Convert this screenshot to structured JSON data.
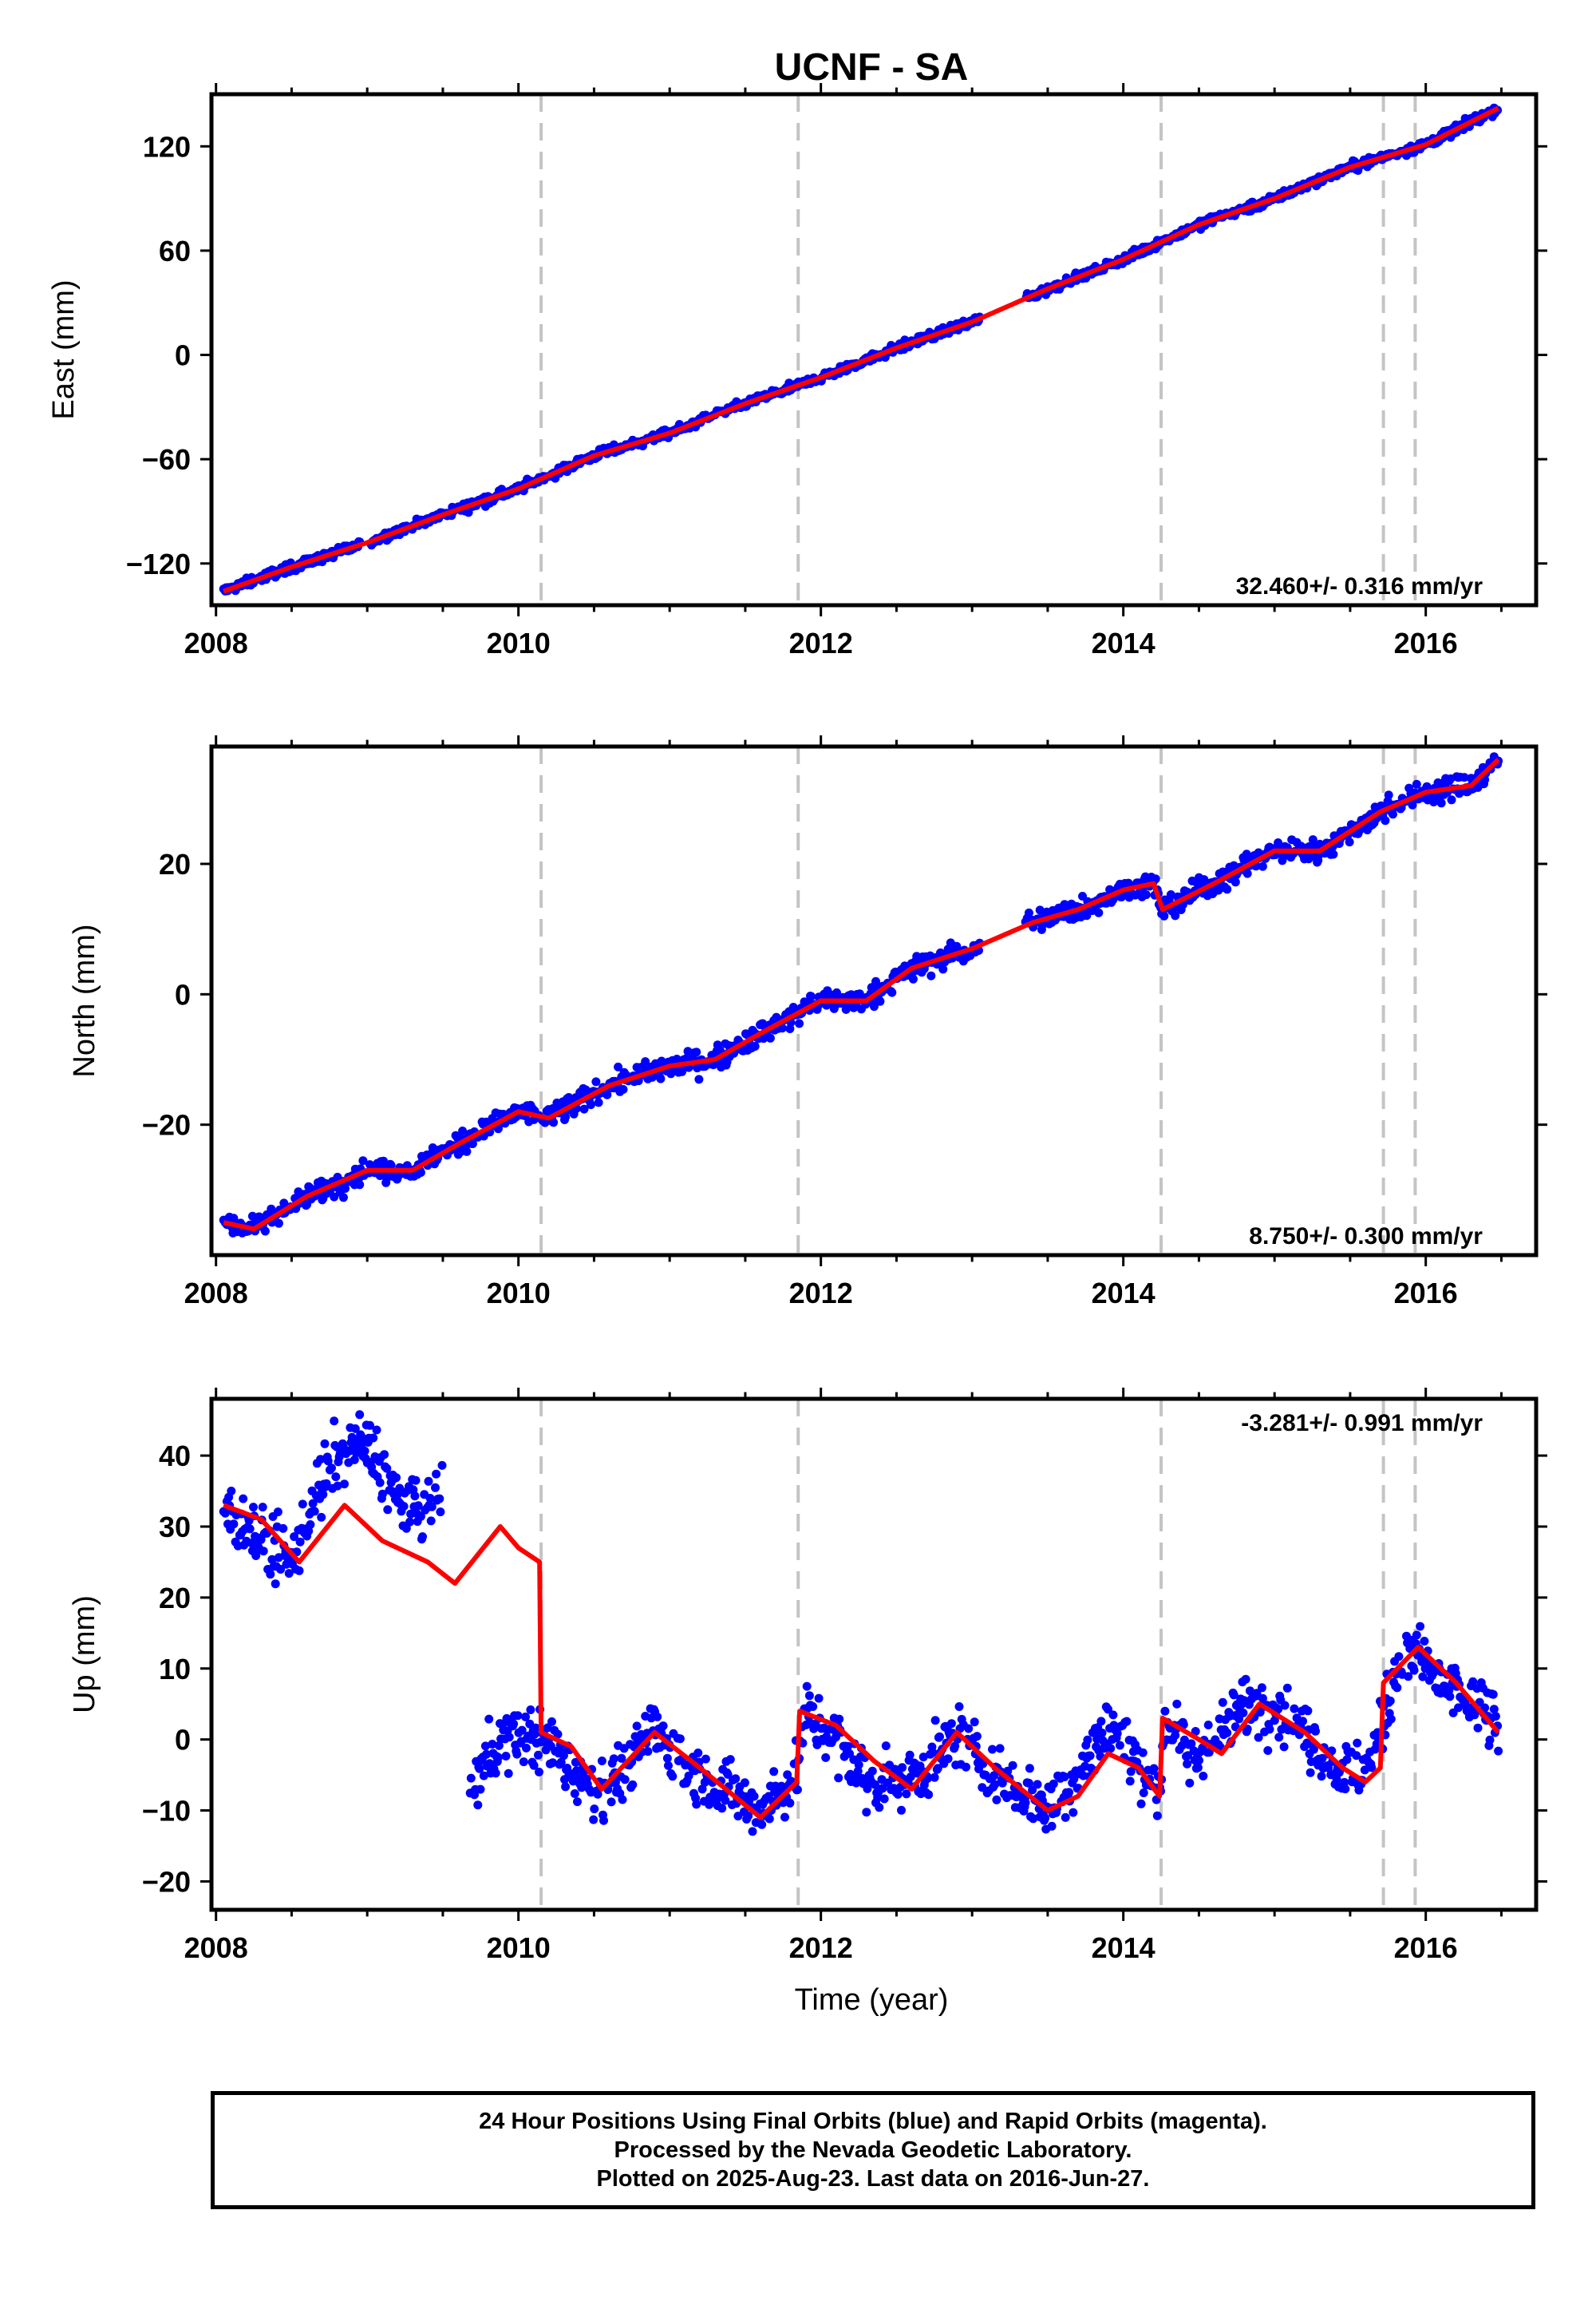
{
  "chart_data": [
    {
      "type": "scatter",
      "title": "UCNF - SA",
      "ylabel": "East (mm)",
      "xlabel": "",
      "xlim": [
        2007.97,
        2016.73
      ],
      "ylim": [
        -144,
        150
      ],
      "xticks": [
        2008,
        2010,
        2012,
        2014,
        2016
      ],
      "yticks": [
        -120,
        -60,
        0,
        60,
        120
      ],
      "ytick_labels": [
        "−120",
        "−60",
        "0",
        "60",
        "120"
      ],
      "rate_label": "32.460+/- 0.316 mm/yr",
      "rate_position": "bottom-right",
      "grid": false,
      "event_lines": [
        2010.15,
        2011.85,
        2014.25,
        2015.72,
        2015.93
      ],
      "series": [
        {
          "kind": "points",
          "color": "#0000ff",
          "gaps": [
            [
              2008.95,
              2009.02
            ],
            [
              2013.05,
              2013.35
            ]
          ],
          "x": [
            2008.05,
            2008.5,
            2009.0,
            2009.5,
            2010.0,
            2010.5,
            2011.0,
            2011.5,
            2012.0,
            2012.5,
            2013.0,
            2013.5,
            2014.0,
            2014.5,
            2015.0,
            2015.5,
            2016.0,
            2016.48
          ],
          "y": [
            -136,
            -122,
            -108,
            -92,
            -77,
            -58,
            -45,
            -28,
            -13,
            4,
            19,
            38,
            55,
            75,
            90,
            108,
            121,
            142
          ]
        },
        {
          "kind": "line",
          "color": "#ff0000",
          "x": [
            2008.05,
            2008.5,
            2009.0,
            2009.5,
            2010.0,
            2010.5,
            2011.0,
            2011.5,
            2012.0,
            2012.5,
            2013.0,
            2013.5,
            2014.0,
            2014.5,
            2015.0,
            2015.5,
            2016.0,
            2016.48
          ],
          "y": [
            -136,
            -122,
            -108,
            -92,
            -77,
            -58,
            -45,
            -28,
            -13,
            4,
            19,
            38,
            55,
            75,
            90,
            108,
            121,
            142
          ]
        }
      ]
    },
    {
      "type": "scatter",
      "title": "",
      "ylabel": "North (mm)",
      "xlabel": "",
      "xlim": [
        2007.97,
        2016.73
      ],
      "ylim": [
        -40,
        38
      ],
      "xticks": [
        2008,
        2010,
        2012,
        2014,
        2016
      ],
      "yticks": [
        -20,
        0,
        20
      ],
      "ytick_labels": [
        "−20",
        "0",
        "20"
      ],
      "rate_label": "8.750+/- 0.300 mm/yr",
      "rate_position": "bottom-right",
      "grid": false,
      "event_lines": [
        2010.15,
        2011.85,
        2014.25,
        2015.72,
        2015.93
      ],
      "series": [
        {
          "kind": "points",
          "color": "#0000ff",
          "gaps": [
            [
              2013.05,
              2013.35
            ]
          ],
          "x": [
            2008.05,
            2008.25,
            2008.6,
            2009.0,
            2009.3,
            2009.6,
            2010.0,
            2010.2,
            2010.6,
            2011.0,
            2011.3,
            2011.6,
            2012.0,
            2012.3,
            2012.6,
            2013.0,
            2013.4,
            2013.7,
            2014.0,
            2014.2,
            2014.26,
            2014.6,
            2015.0,
            2015.3,
            2015.7,
            2016.0,
            2016.3,
            2016.48
          ],
          "y": [
            -35,
            -36,
            -31,
            -27,
            -27,
            -23,
            -18,
            -19,
            -14,
            -11,
            -10,
            -6,
            -1,
            -1,
            4,
            7,
            11,
            13,
            16,
            17,
            13,
            17,
            22,
            22,
            28,
            31,
            32,
            36
          ]
        },
        {
          "kind": "line",
          "color": "#ff0000",
          "x": [
            2008.05,
            2008.25,
            2008.6,
            2009.0,
            2009.3,
            2009.6,
            2010.0,
            2010.2,
            2010.6,
            2011.0,
            2011.3,
            2011.6,
            2012.0,
            2012.3,
            2012.6,
            2013.0,
            2013.4,
            2013.7,
            2014.0,
            2014.2,
            2014.26,
            2014.6,
            2015.0,
            2015.3,
            2015.7,
            2016.0,
            2016.3,
            2016.48
          ],
          "y": [
            -35,
            -36,
            -31,
            -27,
            -27,
            -23,
            -18,
            -19,
            -14,
            -11,
            -10,
            -6,
            -1,
            -1,
            4,
            7,
            11,
            13,
            16,
            17,
            13,
            17,
            22,
            22,
            28,
            31,
            32,
            36
          ]
        }
      ]
    },
    {
      "type": "scatter",
      "title": "",
      "ylabel": "Up (mm)",
      "xlabel": "Time (year)",
      "xlim": [
        2007.97,
        2016.73
      ],
      "ylim": [
        -24,
        48
      ],
      "xticks": [
        2008,
        2010,
        2012,
        2014,
        2016
      ],
      "yticks": [
        -20,
        -10,
        0,
        10,
        20,
        30,
        40
      ],
      "ytick_labels": [
        "−20",
        "−10",
        "0",
        "10",
        "20",
        "30",
        "40"
      ],
      "rate_label": "-3.281+/- 0.991 mm/yr",
      "rate_position": "top-right",
      "grid": false,
      "event_lines": [
        2010.15,
        2011.85,
        2014.25,
        2015.72,
        2015.93
      ],
      "series": [
        {
          "kind": "points",
          "color": "#0000ff",
          "gaps": [
            [
              2009.5,
              2009.68
            ]
          ],
          "x": [
            2008.05,
            2008.2,
            2008.35,
            2008.5,
            2008.65,
            2008.8,
            2008.95,
            2009.05,
            2009.2,
            2009.35,
            2009.5,
            2009.68,
            2009.8,
            2010.0,
            2010.15,
            2010.3,
            2010.5,
            2010.7,
            2010.9,
            2011.1,
            2011.35,
            2011.6,
            2011.84,
            2011.9,
            2012.1,
            2012.3,
            2012.5,
            2012.7,
            2012.9,
            2013.1,
            2013.3,
            2013.5,
            2013.7,
            2013.9,
            2014.1,
            2014.24,
            2014.27,
            2014.45,
            2014.6,
            2014.8,
            2014.95,
            2015.2,
            2015.4,
            2015.6,
            2015.72,
            2015.8,
            2015.95,
            2016.1,
            2016.3,
            2016.48
          ],
          "y": [
            32,
            31,
            27,
            25,
            34,
            40,
            42,
            40,
            34,
            32,
            34,
            -8,
            -2,
            1,
            0,
            -3,
            -7,
            -5,
            2,
            -4,
            -7,
            -10,
            -5,
            4,
            0,
            -6,
            -6,
            -4,
            1,
            -4,
            -7,
            -9,
            -5,
            2,
            -3,
            -8,
            3,
            -3,
            0,
            5,
            5,
            1,
            -4,
            -5,
            3,
            10,
            12,
            8,
            5,
            2
          ]
        },
        {
          "kind": "line",
          "color": "#ff0000",
          "x": [
            2008.05,
            2008.3,
            2008.55,
            2008.85,
            2009.1,
            2009.4,
            2009.58,
            2009.88,
            2010.0,
            2010.14,
            2010.15,
            2010.35,
            2010.55,
            2010.9,
            2011.2,
            2011.6,
            2011.84,
            2011.86,
            2012.1,
            2012.35,
            2012.6,
            2012.9,
            2013.15,
            2013.5,
            2013.7,
            2013.9,
            2014.1,
            2014.24,
            2014.26,
            2014.5,
            2014.65,
            2014.9,
            2015.2,
            2015.45,
            2015.6,
            2015.7,
            2015.72,
            2015.95,
            2016.2,
            2016.48
          ],
          "y": [
            33,
            31,
            25,
            33,
            28,
            25,
            22,
            30,
            27,
            25,
            1,
            -1,
            -7,
            1,
            -4,
            -11,
            -6,
            4,
            2,
            -3,
            -7,
            1,
            -4,
            -10,
            -8,
            -2,
            -4,
            -8,
            3,
            0,
            -2,
            5,
            1,
            -4,
            -6,
            -4,
            8,
            13,
            8,
            1
          ]
        }
      ]
    }
  ],
  "footer": {
    "lines": [
      "24 Hour Positions Using Final Orbits (blue) and Rapid Orbits (magenta).",
      "Processed by the Nevada Geodetic Laboratory.",
      "Plotted on 2025-Aug-23. Last data on 2016-Jun-27."
    ]
  }
}
